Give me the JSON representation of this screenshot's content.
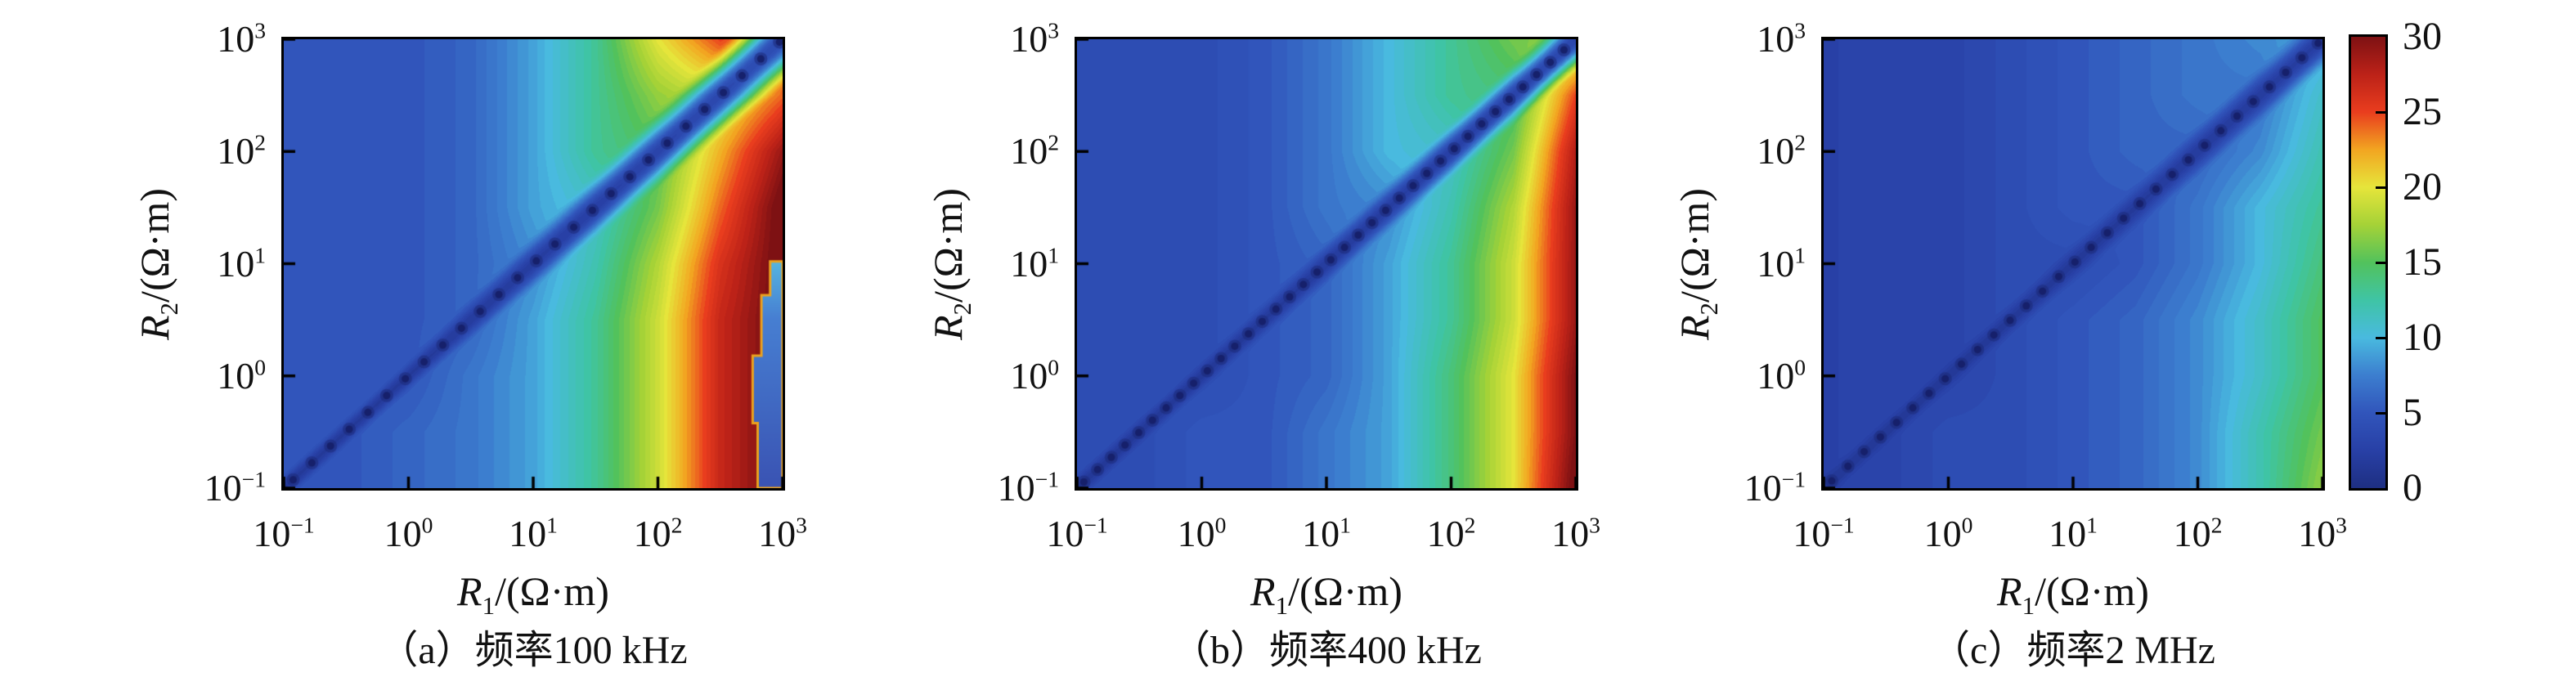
{
  "figure": {
    "description": "Three-panel log-log contour heatmap figure of inversion error versus layer resistivities at three frequencies, with shared jet colorbar 0-30"
  },
  "axis": {
    "x_var": "R",
    "x_sub": "1",
    "x_rest": "/(Ω·m)",
    "y_var": "R",
    "y_sub": "2",
    "y_rest": "/(Ω·m)"
  },
  "log_ticks": [
    {
      "b": "10",
      "e": "−1"
    },
    {
      "b": "10",
      "e": "0"
    },
    {
      "b": "10",
      "e": "1"
    },
    {
      "b": "10",
      "e": "2"
    },
    {
      "b": "10",
      "e": "3"
    }
  ],
  "colorbar": {
    "tick_labels": [
      "30",
      "25",
      "20",
      "15",
      "10",
      "5",
      "0"
    ]
  },
  "chart_data": {
    "type": "heatmap",
    "x_axis": {
      "label": "R1/(Ω·m)",
      "scale": "log10",
      "range": [
        0.1,
        1000
      ],
      "ticks": [
        0.1,
        1,
        10,
        100,
        1000
      ]
    },
    "y_axis": {
      "label": "R2/(Ω·m)",
      "scale": "log10",
      "range": [
        0.1,
        1000
      ],
      "ticks": [
        0.1,
        1,
        10,
        100,
        1000
      ]
    },
    "color_axis": {
      "range": [
        0,
        30
      ],
      "tick_step": 5,
      "colormap": "jet-like",
      "stops": [
        [
          0,
          "#1e2f82"
        ],
        [
          2.5,
          "#2840a6"
        ],
        [
          5,
          "#3155bb"
        ],
        [
          7.5,
          "#3c7ecf"
        ],
        [
          10,
          "#49badf"
        ],
        [
          12.5,
          "#3fc4a5"
        ],
        [
          15,
          "#52c25c"
        ],
        [
          17.5,
          "#a5d237"
        ],
        [
          20,
          "#e6e53b"
        ],
        [
          22.5,
          "#f2a521"
        ],
        [
          25,
          "#e93d1e"
        ],
        [
          27.5,
          "#bc2218"
        ],
        [
          30,
          "#7e1113"
        ]
      ]
    },
    "diagonal_note": "Dark-blue dotted valley of near-zero values along R1 = R2 in every panel",
    "panels": [
      {
        "id": "a",
        "frequency": "100 kHz",
        "caption": "（a）频率100 kHz",
        "cols_log10_R1": [
          -1,
          -0.5,
          0,
          0.5,
          1,
          1.5,
          2,
          2.5,
          3
        ],
        "rows_log10_R2": [
          3,
          2.5,
          2,
          1.5,
          1,
          0.5,
          0,
          -0.5,
          -1
        ],
        "values": [
          [
            5,
            5,
            5,
            6,
            9,
            13,
            20,
            25,
            22
          ],
          [
            5,
            5,
            5,
            6,
            9,
            13,
            17,
            19,
            24
          ],
          [
            5,
            5,
            5,
            6,
            9,
            13,
            15,
            22,
            29
          ],
          [
            5,
            5,
            5,
            6,
            9,
            11,
            16,
            24,
            31
          ],
          [
            5,
            5,
            5,
            6,
            8,
            12,
            18,
            26,
            31
          ],
          [
            5,
            5,
            5,
            6,
            9,
            13,
            19,
            27,
            31
          ],
          [
            5,
            5,
            5,
            7,
            9,
            13,
            19,
            27,
            31
          ],
          [
            5,
            5,
            6,
            7,
            9,
            13,
            19,
            27,
            31
          ],
          [
            5,
            5,
            6,
            7,
            9,
            13,
            19,
            27,
            31
          ]
        ],
        "valley_widen": 0.055,
        "dot_spacing_log10": 0.15,
        "right_edge_anomaly_polygon_log10": [
          [
            3,
            -1
          ],
          [
            2.8,
            -1
          ],
          [
            2.8,
            -0.42
          ],
          [
            2.76,
            -0.42
          ],
          [
            2.76,
            0.18
          ],
          [
            2.83,
            0.18
          ],
          [
            2.83,
            0.72
          ],
          [
            2.9,
            0.72
          ],
          [
            2.9,
            1.02
          ],
          [
            3,
            1.02
          ]
        ]
      },
      {
        "id": "b",
        "frequency": "400 kHz",
        "caption": "（b）频率400 kHz",
        "cols_log10_R1": [
          -1,
          -0.5,
          0,
          0.5,
          1,
          1.5,
          2,
          2.5,
          3
        ],
        "rows_log10_R2": [
          3,
          2.5,
          2,
          1.5,
          1,
          0.5,
          0,
          -0.5,
          -1
        ],
        "values": [
          [
            4,
            4,
            4,
            5,
            7,
            10,
            13,
            16,
            17
          ],
          [
            4,
            4,
            4,
            5,
            7,
            10,
            13,
            14,
            25
          ],
          [
            4,
            4,
            4,
            5,
            7,
            10,
            11,
            16,
            28
          ],
          [
            4,
            4,
            4,
            5,
            7,
            8,
            12,
            18,
            29
          ],
          [
            4,
            4,
            4,
            5,
            6,
            9,
            13,
            19,
            29
          ],
          [
            4,
            4,
            4,
            5,
            6,
            9,
            13,
            19,
            29
          ],
          [
            4,
            4,
            4,
            5,
            6,
            9,
            14,
            20,
            30
          ],
          [
            4,
            4,
            5,
            5,
            7,
            9,
            14,
            20,
            30
          ],
          [
            4,
            4,
            5,
            5,
            7,
            9,
            14,
            20,
            31
          ]
        ],
        "valley_widen": 0.03,
        "dot_spacing_log10": 0.11
      },
      {
        "id": "c",
        "frequency": "2 MHz",
        "caption": "（c）频率2 MHz",
        "cols_log10_R1": [
          -1,
          -0.5,
          0,
          0.5,
          1,
          1.5,
          2,
          2.5,
          3
        ],
        "rows_log10_R2": [
          3,
          2.5,
          2,
          1.5,
          1,
          0.5,
          0,
          -0.5,
          -1
        ],
        "values": [
          [
            3,
            3,
            3,
            4,
            5,
            6,
            7,
            8,
            9
          ],
          [
            3,
            3,
            3,
            4,
            5,
            6,
            7,
            7,
            11
          ],
          [
            3,
            3,
            3,
            4,
            5,
            6,
            6,
            8,
            12
          ],
          [
            3,
            3,
            3,
            4,
            5,
            5,
            7,
            10,
            13
          ],
          [
            3,
            3,
            3,
            4,
            4,
            5,
            7,
            10,
            14
          ],
          [
            3,
            3,
            3,
            4,
            5,
            6,
            8,
            11,
            15
          ],
          [
            3,
            3,
            3,
            4,
            5,
            6,
            8,
            11,
            15
          ],
          [
            3,
            3,
            4,
            4,
            5,
            6,
            8,
            12,
            16
          ],
          [
            3,
            3,
            4,
            4,
            5,
            6,
            8,
            12,
            17
          ]
        ],
        "valley_widen": 0.025,
        "dot_spacing_log10": 0.13
      }
    ]
  }
}
